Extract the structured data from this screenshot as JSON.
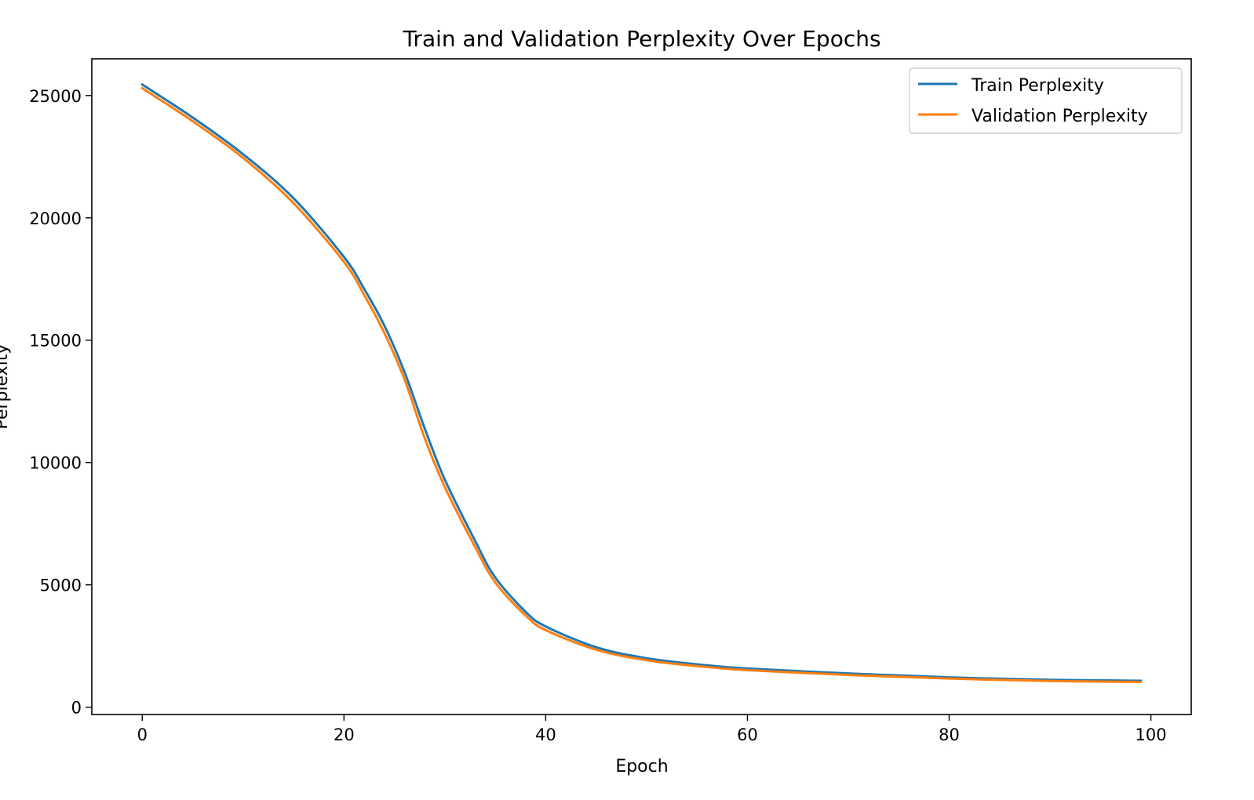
{
  "chart_data": {
    "type": "line",
    "title": "Train and Validation Perplexity Over Epochs",
    "xlabel": "Epoch",
    "ylabel": "Perplexity",
    "xlim": [
      -5,
      104
    ],
    "ylim": [
      -300,
      26500
    ],
    "xticks": [
      0,
      20,
      40,
      60,
      80,
      100
    ],
    "yticks": [
      0,
      5000,
      10000,
      15000,
      20000,
      25000
    ],
    "grid": false,
    "legend_position": "top-right",
    "x": [
      0,
      5,
      10,
      15,
      20,
      22,
      24,
      26,
      28,
      30,
      33,
      35,
      38,
      40,
      45,
      50,
      55,
      60,
      70,
      80,
      90,
      99
    ],
    "series": [
      {
        "name": "Train Perplexity",
        "color": "#1f77b4",
        "values": [
          25450,
          24100,
          22600,
          20800,
          18400,
          17100,
          15600,
          13700,
          11400,
          9300,
          6800,
          5300,
          3900,
          3300,
          2450,
          2000,
          1750,
          1580,
          1380,
          1220,
          1120,
          1080
        ]
      },
      {
        "name": "Validation Perplexity",
        "color": "#ff7f0e",
        "values": [
          25300,
          23950,
          22450,
          20600,
          18200,
          16850,
          15300,
          13400,
          11000,
          9000,
          6550,
          5100,
          3750,
          3150,
          2350,
          1920,
          1680,
          1510,
          1320,
          1170,
          1070,
          1030
        ]
      }
    ]
  }
}
